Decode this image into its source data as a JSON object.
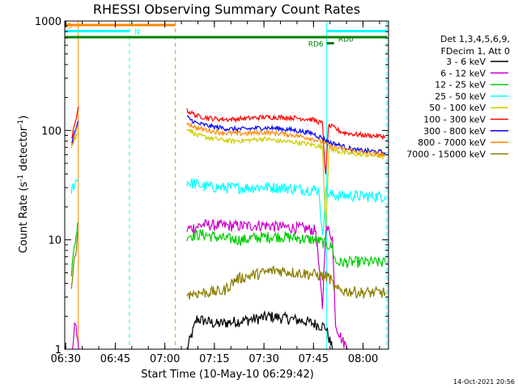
{
  "chart_data": {
    "type": "line",
    "title": "RHESSI Observing Summary Count Rates",
    "xlabel": "Start Time (10-May-10 06:29:42)",
    "ylabel_main": "Count Rate (s",
    "ylabel_sup1": "-1",
    "ylabel_mid": " detector",
    "ylabel_sup2": "-1",
    "ylabel_end": ")",
    "y_scale": "log",
    "ylim": [
      1,
      1000
    ],
    "xlim_minutes": [
      0,
      98
    ],
    "x_ticks": [
      {
        "t": 0.3,
        "label": "06:30"
      },
      {
        "t": 15.3,
        "label": "06:45"
      },
      {
        "t": 30.3,
        "label": "07:00"
      },
      {
        "t": 45.3,
        "label": "07:15"
      },
      {
        "t": 60.3,
        "label": "07:30"
      },
      {
        "t": 75.3,
        "label": "07:45"
      },
      {
        "t": 90.3,
        "label": "08:00"
      }
    ],
    "y_ticks": [
      {
        "v": 1,
        "label": "1"
      },
      {
        "v": 10,
        "label": "10"
      },
      {
        "v": 100,
        "label": "100"
      },
      {
        "v": 1000,
        "label": "1000"
      }
    ],
    "legend_header": [
      "Det 1,3,4,5,6,9,",
      "FDecim 1, Att 0"
    ],
    "series": [
      {
        "name": "3 - 6 keV",
        "color": "#000000",
        "segments": [
          [
            [
              37,
              1
            ],
            [
              40,
              1.9
            ],
            [
              46,
              1.7
            ],
            [
              52,
              1.8
            ],
            [
              58,
              1.9
            ],
            [
              62,
              2.0
            ],
            [
              68,
              1.9
            ],
            [
              73,
              1.8
            ],
            [
              79,
              1.6
            ],
            [
              81,
              1
            ]
          ]
        ]
      },
      {
        "name": "6 - 12 keV",
        "color": "#cc00cc",
        "segments": [
          [
            [
              2.3,
              1
            ],
            [
              3.2,
              1.8
            ],
            [
              4.2,
              1
            ]
          ],
          [
            [
              37,
              12.5
            ],
            [
              42,
              13.8
            ],
            [
              48,
              13.5
            ],
            [
              55,
              13.4
            ],
            [
              60,
              13.7
            ],
            [
              66,
              13.1
            ],
            [
              72,
              12.8
            ],
            [
              76,
              12.2
            ],
            [
              78,
              2.4
            ],
            [
              79,
              12.5
            ],
            [
              80,
              12.2
            ],
            [
              81,
              10.5
            ],
            [
              82,
              1.7
            ],
            [
              84,
              1.2
            ],
            [
              86,
              1
            ]
          ]
        ]
      },
      {
        "name": "12 - 25 keV",
        "color": "#00cc00",
        "segments": [
          [
            [
              2,
              5
            ],
            [
              2.6,
              7
            ],
            [
              3.2,
              10
            ],
            [
              4.1,
              14.5
            ]
          ],
          [
            [
              37,
              11
            ],
            [
              42,
              11.2
            ],
            [
              48,
              10.3
            ],
            [
              54,
              10.0
            ],
            [
              58,
              10.5
            ],
            [
              64,
              10.8
            ],
            [
              70,
              10.4
            ],
            [
              76,
              10.0
            ],
            [
              78,
              9.5
            ],
            [
              79,
              9.2
            ],
            [
              81,
              8.6
            ],
            [
              82,
              6.2
            ],
            [
              90,
              6.3
            ],
            [
              97,
              6.2
            ]
          ]
        ]
      },
      {
        "name": "25 - 50 keV",
        "color": "#00ffff",
        "segments": [
          [
            [
              2,
              28
            ],
            [
              3,
              33
            ],
            [
              4.1,
              36
            ]
          ],
          [
            [
              37,
              34
            ],
            [
              42,
              31
            ],
            [
              48,
              30
            ],
            [
              54,
              30
            ],
            [
              60,
              30.5
            ],
            [
              66,
              30
            ],
            [
              72,
              29
            ],
            [
              77,
              28.5
            ],
            [
              78,
              10
            ],
            [
              79,
              30
            ],
            [
              80,
              26
            ],
            [
              82,
              25.5
            ],
            [
              90,
              25.2
            ],
            [
              97,
              25
            ]
          ]
        ]
      },
      {
        "name": "50 - 100 keV",
        "color": "#cccc00",
        "segments": [
          [
            [
              2,
              72
            ],
            [
              3,
              82
            ],
            [
              4.1,
              95
            ]
          ],
          [
            [
              37,
              106
            ],
            [
              40,
              90
            ],
            [
              45,
              84
            ],
            [
              50,
              80
            ],
            [
              55,
              81
            ],
            [
              60,
              84
            ],
            [
              65,
              80
            ],
            [
              70,
              78
            ],
            [
              75,
              74
            ],
            [
              78,
              70
            ],
            [
              79,
              14
            ],
            [
              80,
              68
            ],
            [
              85,
              62
            ],
            [
              90,
              60
            ],
            [
              97,
              58
            ]
          ]
        ]
      },
      {
        "name": "100 - 300 keV",
        "color": "#ff0000",
        "segments": [
          [
            [
              2,
              82
            ],
            [
              3,
              112
            ],
            [
              4.1,
              165
            ]
          ],
          [
            [
              37,
              152
            ],
            [
              40,
              136
            ],
            [
              45,
              128
            ],
            [
              50,
              126
            ],
            [
              55,
              129
            ],
            [
              60,
              132
            ],
            [
              65,
              132
            ],
            [
              70,
              130
            ],
            [
              75,
              126
            ],
            [
              78,
              116
            ],
            [
              79,
              36
            ],
            [
              79.8,
              110
            ],
            [
              81,
              108
            ],
            [
              84,
              96
            ],
            [
              88,
              92
            ],
            [
              92,
              90
            ],
            [
              97,
              88
            ]
          ]
        ]
      },
      {
        "name": "300 - 800 keV",
        "color": "#0000ff",
        "segments": [
          [
            [
              2,
              76
            ],
            [
              3,
              95
            ],
            [
              4.1,
              122
            ]
          ],
          [
            [
              37,
              132
            ],
            [
              40,
              116
            ],
            [
              45,
              108
            ],
            [
              50,
              103
            ],
            [
              55,
              103
            ],
            [
              60,
              106
            ],
            [
              65,
              104
            ],
            [
              70,
              100
            ],
            [
              75,
              94
            ],
            [
              78,
              85
            ],
            [
              80,
              78
            ],
            [
              84,
              72
            ],
            [
              88,
              66
            ],
            [
              92,
              65
            ],
            [
              97,
              63
            ]
          ]
        ]
      },
      {
        "name": "800 - 7000 keV",
        "color": "#ff8800",
        "segments": [
          [
            [
              2,
              70
            ],
            [
              3,
              88
            ],
            [
              4.1,
              110
            ]
          ],
          [
            [
              37,
              118
            ],
            [
              40,
              105
            ],
            [
              45,
              98
            ],
            [
              50,
              94
            ],
            [
              55,
              94
            ],
            [
              60,
              96
            ],
            [
              65,
              94
            ],
            [
              70,
              90
            ],
            [
              75,
              84
            ],
            [
              78,
              78
            ],
            [
              80,
              72
            ],
            [
              84,
              68
            ],
            [
              88,
              64
            ],
            [
              92,
              62
            ],
            [
              97,
              60
            ]
          ]
        ]
      },
      {
        "name": "7000 - 15000 keV",
        "color": "#8b7d00",
        "segments": [
          [
            [
              2,
              3.2
            ],
            [
              3,
              7
            ],
            [
              4.1,
              12
            ]
          ],
          [
            [
              37,
              3.2
            ],
            [
              42,
              3.3
            ],
            [
              48,
              3.4
            ],
            [
              52,
              4.4
            ],
            [
              56,
              4.7
            ],
            [
              60,
              5.0
            ],
            [
              64,
              5.3
            ],
            [
              68,
              5.1
            ],
            [
              74,
              4.9
            ],
            [
              78,
              4.7
            ],
            [
              80,
              4.6
            ],
            [
              82,
              3.5
            ],
            [
              90,
              3.3
            ],
            [
              97,
              3.3
            ]
          ]
        ]
      }
    ],
    "state_bars": [
      {
        "label": "S",
        "color": "#ff8800",
        "t_start": 0,
        "t_end": 33.5,
        "level": 1,
        "label_at": "start"
      },
      {
        "label": "N",
        "color": "#00ffff",
        "t_start": 0,
        "t_end": 19.6,
        "level": 2,
        "label_at": "after"
      },
      {
        "label": "N",
        "color": "#00ffff",
        "t_start": 79.3,
        "t_end": 97.5,
        "level": 2,
        "label_at": "none"
      },
      {
        "label": "",
        "color": "#008000",
        "t_start": 0,
        "t_end": 97.5,
        "level": 3,
        "label_at": "none"
      },
      {
        "label": "RD6",
        "color": "#008000",
        "t_start": 79.3,
        "t_end": 81.5,
        "level": 4,
        "label_at": "before"
      },
      {
        "label": "RD0",
        "color": "#008000",
        "t_start": 81.3,
        "t_end": 81.3,
        "level": 3.2,
        "label_at": "after"
      }
    ],
    "vlines": [
      {
        "t": 4.1,
        "color": "#ff8800",
        "style": "solid"
      },
      {
        "t": 19.6,
        "color": "#00ffff",
        "style": "dashed"
      },
      {
        "t": 33.5,
        "color": "#ff8800",
        "style": "dashed"
      },
      {
        "t": 79.3,
        "color": "#00ffff",
        "style": "solid"
      },
      {
        "t": 97.5,
        "color": "#00ffff",
        "style": "dashed"
      }
    ],
    "grid": false,
    "legend_placement": "right"
  },
  "footer": {
    "timestamp": "14-Oct-2021 20:56"
  }
}
